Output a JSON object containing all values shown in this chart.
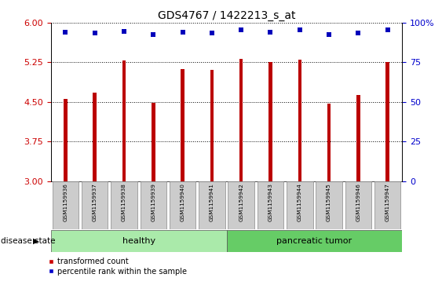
{
  "title": "GDS4767 / 1422213_s_at",
  "samples": [
    "GSM1159936",
    "GSM1159937",
    "GSM1159938",
    "GSM1159939",
    "GSM1159940",
    "GSM1159941",
    "GSM1159942",
    "GSM1159943",
    "GSM1159944",
    "GSM1159945",
    "GSM1159946",
    "GSM1159947"
  ],
  "transformed_count": [
    4.55,
    4.68,
    5.28,
    4.48,
    5.12,
    5.1,
    5.32,
    5.26,
    5.3,
    4.47,
    4.63,
    5.26
  ],
  "percentile_rank": [
    5.82,
    5.8,
    5.84,
    5.78,
    5.82,
    5.8,
    5.87,
    5.82,
    5.87,
    5.78,
    5.8,
    5.87
  ],
  "ylim": [
    3,
    6
  ],
  "yticks": [
    3,
    3.75,
    4.5,
    5.25,
    6
  ],
  "right_yticks": [
    0,
    25,
    50,
    75,
    100
  ],
  "bar_color": "#bb0000",
  "dot_color": "#0000bb",
  "groups": [
    {
      "label": "healthy",
      "start": 0,
      "end": 5,
      "color": "#aaeaaa"
    },
    {
      "label": "pancreatic tumor",
      "start": 6,
      "end": 11,
      "color": "#66cc66"
    }
  ],
  "group_label_prefix": "disease state",
  "bar_width": 0.12,
  "tick_bg_color": "#cccccc",
  "grid_color": "black",
  "left_tick_color": "#cc0000",
  "right_tick_color": "#0000cc",
  "legend_items": [
    {
      "label": "transformed count",
      "color": "#cc0000",
      "marker": "s"
    },
    {
      "label": "percentile rank within the sample",
      "color": "#0000cc",
      "marker": "s"
    }
  ]
}
